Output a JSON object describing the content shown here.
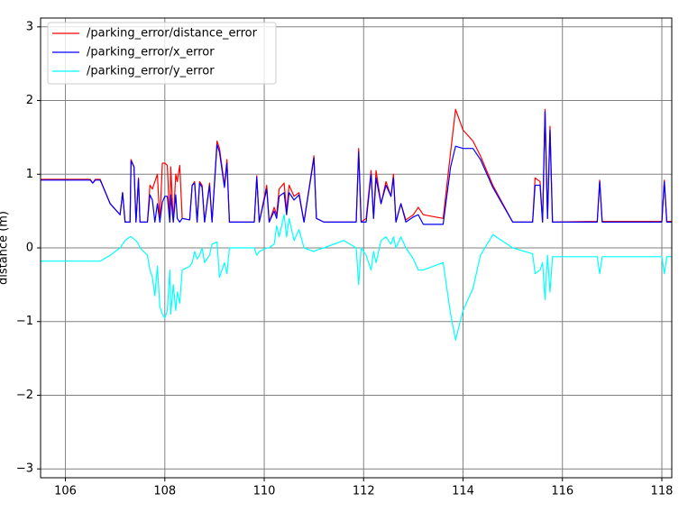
{
  "chart_data": {
    "type": "line",
    "y_label": "distance (m)",
    "xlim": [
      105.5,
      118.2
    ],
    "ylim": [
      -3.12,
      3.12
    ],
    "xticks": [
      106,
      108,
      110,
      112,
      114,
      116,
      118
    ],
    "yticks": [
      {
        "value": -3,
        "label": "−3"
      },
      {
        "value": -2,
        "label": "−2"
      },
      {
        "value": -1,
        "label": "−1"
      },
      0,
      1,
      2,
      3
    ],
    "grid": true,
    "legend": "upper-left",
    "x": [
      105.5,
      106.5,
      106.55,
      106.6,
      106.7,
      106.9,
      107.1,
      107.15,
      107.2,
      107.3,
      107.32,
      107.38,
      107.42,
      107.47,
      107.5,
      107.65,
      107.7,
      107.75,
      107.8,
      107.85,
      107.9,
      107.95,
      108.0,
      108.05,
      108.1,
      108.12,
      108.17,
      108.22,
      108.25,
      108.3,
      108.35,
      108.5,
      108.55,
      108.6,
      108.65,
      108.7,
      108.75,
      108.8,
      108.9,
      108.95,
      109.05,
      109.1,
      109.2,
      109.25,
      109.3,
      109.8,
      109.85,
      109.9,
      110.05,
      110.1,
      110.2,
      110.25,
      110.3,
      110.4,
      110.45,
      110.5,
      110.6,
      110.7,
      110.8,
      111.0,
      111.05,
      111.2,
      111.6,
      111.85,
      111.9,
      111.95,
      112.05,
      112.15,
      112.2,
      112.25,
      112.35,
      112.45,
      112.55,
      112.6,
      112.65,
      112.75,
      112.85,
      113.0,
      113.1,
      113.2,
      113.6,
      113.75,
      113.85,
      114.0,
      114.2,
      114.35,
      114.6,
      115.0,
      115.4,
      115.45,
      115.55,
      115.6,
      115.65,
      115.7,
      115.75,
      115.8,
      116.7,
      116.75,
      116.8,
      118.0,
      118.05,
      118.1,
      118.2
    ],
    "series": [
      {
        "name": "/parking_error/distance_error",
        "color": "#ff0000",
        "values": [
          0.93,
          0.93,
          0.88,
          0.93,
          0.93,
          0.6,
          0.45,
          0.75,
          0.35,
          0.35,
          1.2,
          1.1,
          0.35,
          0.95,
          0.35,
          0.35,
          0.85,
          0.8,
          0.9,
          1.0,
          0.35,
          1.15,
          1.15,
          1.12,
          0.35,
          1.1,
          0.35,
          1.0,
          0.9,
          1.12,
          0.4,
          0.38,
          0.85,
          0.9,
          0.35,
          0.9,
          0.85,
          0.35,
          0.88,
          0.35,
          1.45,
          1.35,
          0.85,
          1.2,
          0.35,
          0.35,
          0.98,
          0.35,
          0.85,
          0.35,
          0.55,
          0.45,
          0.8,
          0.88,
          0.5,
          0.85,
          0.7,
          0.75,
          0.35,
          1.25,
          0.4,
          0.35,
          0.35,
          0.35,
          1.35,
          0.35,
          0.4,
          1.05,
          0.4,
          1.05,
          0.6,
          0.9,
          0.7,
          1.0,
          0.35,
          0.6,
          0.38,
          0.45,
          0.55,
          0.45,
          0.4,
          1.3,
          1.88,
          1.6,
          1.45,
          1.25,
          0.85,
          0.35,
          0.35,
          0.95,
          0.9,
          0.35,
          1.88,
          0.4,
          1.65,
          0.35,
          0.36,
          0.92,
          0.36,
          0.36,
          0.92,
          0.36,
          0.36
        ]
      },
      {
        "name": "/parking_error/x_error",
        "color": "#0000ff",
        "values": [
          0.92,
          0.92,
          0.88,
          0.92,
          0.92,
          0.6,
          0.45,
          0.75,
          0.35,
          0.35,
          1.18,
          1.1,
          0.35,
          0.93,
          0.35,
          0.35,
          0.72,
          0.65,
          0.35,
          0.6,
          0.35,
          0.62,
          0.7,
          0.7,
          0.35,
          0.72,
          0.35,
          0.72,
          0.4,
          0.35,
          0.4,
          0.38,
          0.85,
          0.88,
          0.35,
          0.88,
          0.82,
          0.35,
          0.85,
          0.35,
          1.4,
          1.3,
          0.82,
          1.15,
          0.35,
          0.35,
          0.96,
          0.35,
          0.8,
          0.35,
          0.5,
          0.4,
          0.7,
          0.75,
          0.45,
          0.75,
          0.65,
          0.72,
          0.35,
          1.22,
          0.4,
          0.35,
          0.35,
          0.35,
          1.3,
          0.35,
          0.35,
          1.0,
          0.4,
          0.95,
          0.6,
          0.85,
          0.7,
          0.95,
          0.35,
          0.6,
          0.35,
          0.42,
          0.45,
          0.32,
          0.32,
          1.1,
          1.38,
          1.35,
          1.35,
          1.2,
          0.82,
          0.35,
          0.35,
          0.85,
          0.85,
          0.35,
          1.85,
          0.4,
          1.6,
          0.35,
          0.35,
          0.9,
          0.35,
          0.35,
          0.9,
          0.35,
          0.35
        ]
      },
      {
        "name": "/parking_error/y_error",
        "color": "#00ffff",
        "values": [
          -0.18,
          -0.18,
          -0.18,
          -0.18,
          -0.18,
          -0.1,
          0.0,
          0.05,
          0.1,
          0.15,
          0.15,
          0.12,
          0.1,
          0.05,
          0.0,
          -0.1,
          -0.3,
          -0.4,
          -0.65,
          -0.25,
          -0.8,
          -0.9,
          -0.95,
          -0.85,
          -0.3,
          -0.9,
          -0.5,
          -0.85,
          -0.6,
          -0.75,
          -0.3,
          -0.25,
          -0.2,
          -0.05,
          -0.15,
          -0.1,
          0.0,
          -0.2,
          -0.1,
          0.05,
          0.08,
          -0.4,
          -0.2,
          -0.35,
          0.0,
          0.0,
          -0.1,
          -0.05,
          0.0,
          0.0,
          0.05,
          0.3,
          0.15,
          0.45,
          0.15,
          0.4,
          0.1,
          0.25,
          0.0,
          -0.05,
          -0.03,
          0.0,
          0.1,
          0.0,
          -0.5,
          0.0,
          -0.1,
          -0.3,
          -0.05,
          -0.2,
          0.1,
          0.15,
          0.05,
          0.15,
          0.0,
          0.15,
          0.0,
          -0.15,
          -0.3,
          -0.3,
          -0.2,
          -0.9,
          -1.25,
          -0.85,
          -0.55,
          -0.1,
          0.18,
          0.0,
          -0.08,
          -0.35,
          -0.3,
          -0.2,
          -0.7,
          -0.1,
          -0.6,
          -0.12,
          -0.12,
          -0.35,
          -0.12,
          -0.12,
          -0.35,
          -0.12,
          -0.12
        ]
      }
    ]
  }
}
